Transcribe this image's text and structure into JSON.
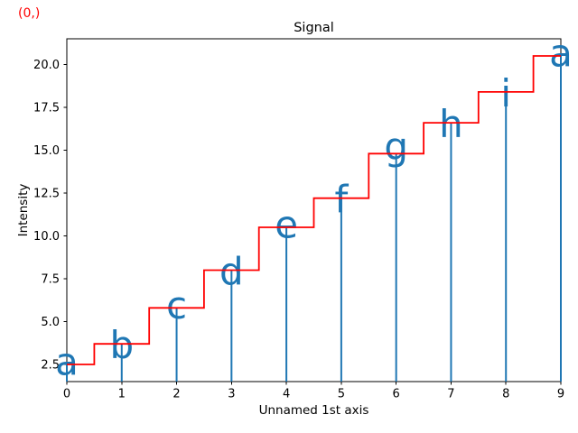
{
  "figure": {
    "annotation": {
      "text": "(0,)",
      "color": "#ff0000"
    }
  },
  "chart_data": {
    "type": "stem+step",
    "title": "Signal",
    "xlabel": "Unnamed 1st axis",
    "ylabel": "Intensity",
    "x": [
      0,
      1,
      2,
      3,
      4,
      5,
      6,
      7,
      8,
      9
    ],
    "values": [
      2.5,
      3.7,
      5.8,
      8.0,
      10.5,
      12.2,
      14.8,
      16.6,
      18.4,
      20.5
    ],
    "point_labels": [
      "a",
      "b",
      "c",
      "d",
      "e",
      "f",
      "g",
      "h",
      "i",
      "a"
    ],
    "series": [
      {
        "name": "step-line",
        "type": "step-mid",
        "color": "#ff0000"
      },
      {
        "name": "stems",
        "type": "stem",
        "color": "#1f77b4"
      }
    ],
    "marker_color": "#1f77b4",
    "axis_color": "#000000",
    "xlim": [
      0,
      9
    ],
    "ylim": [
      1.5,
      21.5
    ],
    "xticks": [
      "0",
      "1",
      "2",
      "3",
      "4",
      "5",
      "6",
      "7",
      "8",
      "9"
    ],
    "yticks": [
      "2.5",
      "5.0",
      "7.5",
      "10.0",
      "12.5",
      "15.0",
      "17.5",
      "20.0"
    ],
    "grid": false
  }
}
